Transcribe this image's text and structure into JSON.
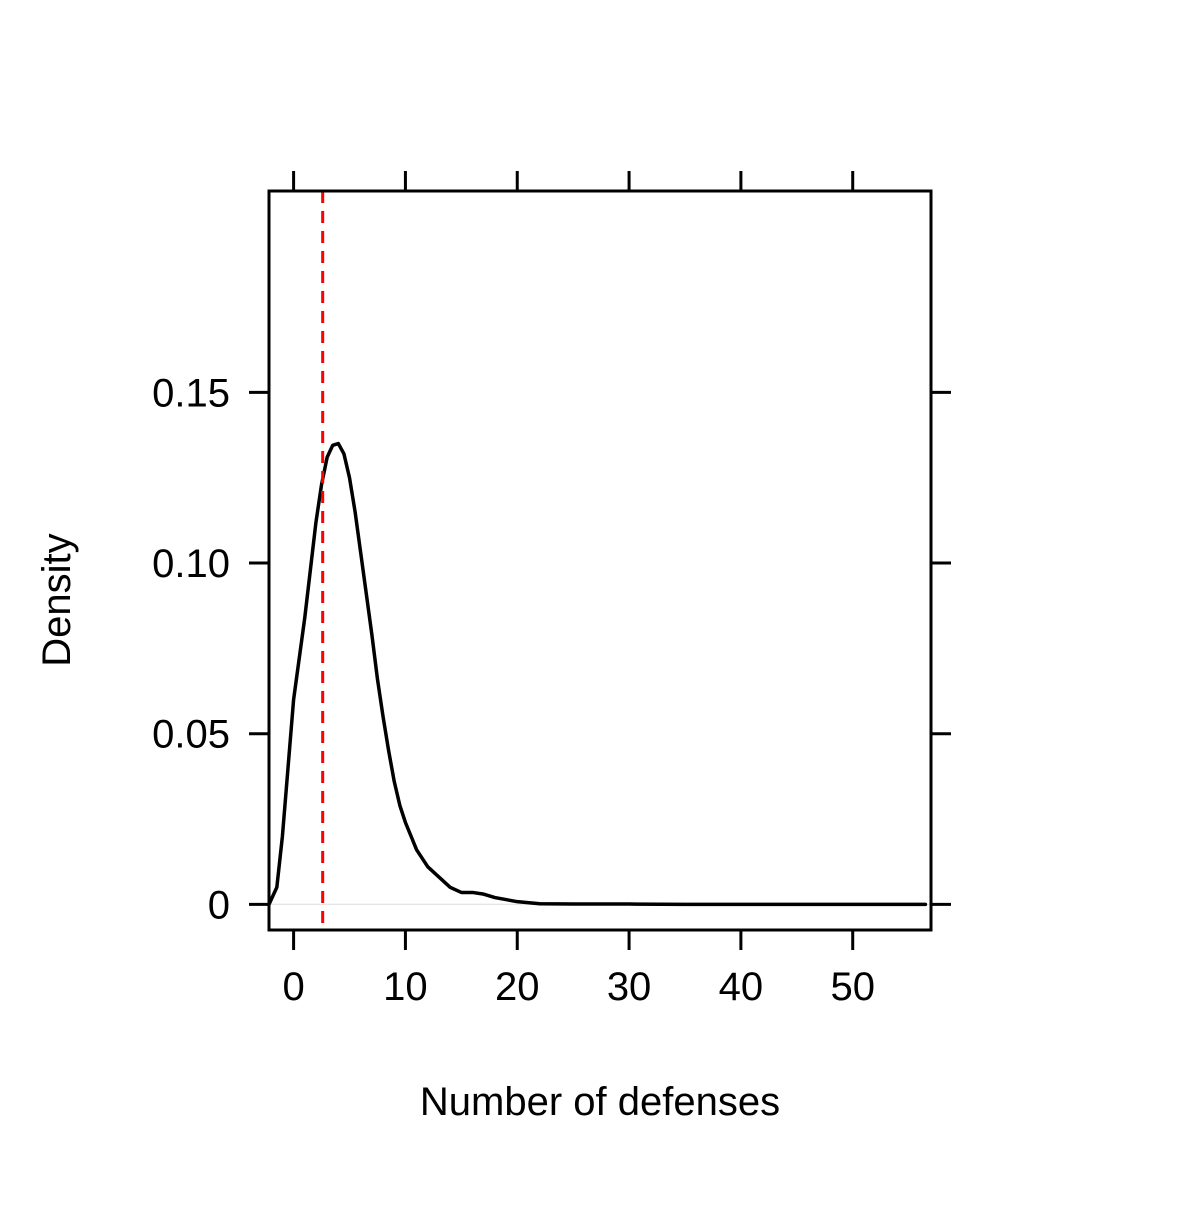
{
  "chart_data": {
    "type": "line",
    "title": "",
    "xlabel": "Number of defenses",
    "ylabel": "Density",
    "xlim": [
      -2.2,
      57.0
    ],
    "ylim": [
      -0.0075,
      0.209
    ],
    "x_ticks": [
      0,
      10,
      20,
      30,
      40,
      50
    ],
    "x_tick_labels": [
      "0",
      "10",
      "20",
      "30",
      "40",
      "50"
    ],
    "y_ticks": [
      0,
      0.05,
      0.1,
      0.15
    ],
    "y_tick_labels": [
      "0",
      "0.05",
      "0.10",
      "0.15"
    ],
    "grid": false,
    "colors": {
      "density": "#000000",
      "reference": "#ff0000",
      "baseline": "#e6e6e6"
    },
    "series": [
      {
        "values": [
          [
            -2.2,
            0.0
          ],
          [
            -1.5,
            0.005
          ],
          [
            -1.0,
            0.02
          ],
          [
            -0.5,
            0.04
          ],
          [
            0.0,
            0.06
          ],
          [
            0.5,
            0.072
          ],
          [
            1.0,
            0.084
          ],
          [
            1.5,
            0.098
          ],
          [
            2.0,
            0.112
          ],
          [
            2.5,
            0.123
          ],
          [
            3.0,
            0.131
          ],
          [
            3.5,
            0.1345
          ],
          [
            4.0,
            0.135
          ],
          [
            4.5,
            0.132
          ],
          [
            5.0,
            0.125
          ],
          [
            5.5,
            0.115
          ],
          [
            6.0,
            0.103
          ],
          [
            6.5,
            0.091
          ],
          [
            7.0,
            0.079
          ],
          [
            7.5,
            0.066
          ],
          [
            8.0,
            0.055
          ],
          [
            8.5,
            0.045
          ],
          [
            9.0,
            0.036
          ],
          [
            9.5,
            0.029
          ],
          [
            10.0,
            0.024
          ],
          [
            10.5,
            0.02
          ],
          [
            11.0,
            0.016
          ],
          [
            12.0,
            0.011
          ],
          [
            13.0,
            0.008
          ],
          [
            14.0,
            0.005
          ],
          [
            15.0,
            0.0035
          ],
          [
            16.0,
            0.0035
          ],
          [
            17.0,
            0.003
          ],
          [
            18.0,
            0.002
          ],
          [
            20.0,
            0.0008
          ],
          [
            22.0,
            0.0002
          ],
          [
            25.0,
            0.0001
          ],
          [
            30.0,
            0.0001
          ],
          [
            35.0,
            0.0
          ],
          [
            40.0,
            0.0
          ],
          [
            45.0,
            0.0
          ],
          [
            50.0,
            0.0
          ],
          [
            56.5,
            0.0
          ]
        ]
      }
    ],
    "reference_line": {
      "orientation": "vertical",
      "x": 2.6,
      "style": "dashed"
    }
  }
}
